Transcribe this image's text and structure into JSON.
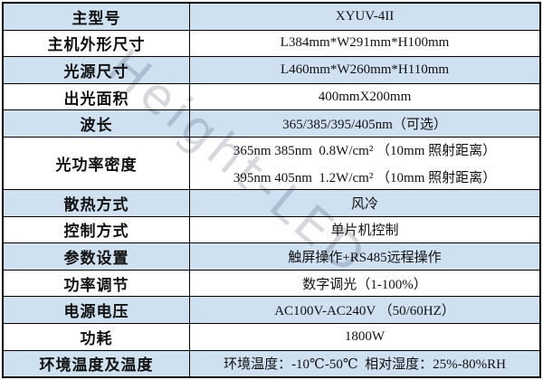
{
  "watermark": {
    "text": "Height-LED",
    "color": "#9ea3af"
  },
  "colors": {
    "row_blue": "#cfe0f1",
    "row_white": "#ffffff",
    "border": "#000000",
    "text": "#111111"
  },
  "table": {
    "rows": [
      {
        "label": "主型号",
        "value": "XYUV-4II",
        "shade": "blue"
      },
      {
        "label": "主机外形尺寸",
        "value": "L384mm*W291mm*H100mm",
        "shade": "white"
      },
      {
        "label": "光源尺寸",
        "value": "L460mm*W260mm*H110mm",
        "shade": "blue"
      },
      {
        "label": "出光面积",
        "value": "400mmX200mm",
        "shade": "white"
      },
      {
        "label": "波长",
        "value": "365/385/395/405nm（可选）",
        "shade": "blue"
      },
      {
        "label": "光功率密度",
        "shade": "white",
        "lines": [
          "365nm 385nm  0.8W/cm² （10mm 照射距离）",
          "395nm 405nm  1.2W/cm² （10mm 照射距离）"
        ]
      },
      {
        "label": "散热方式",
        "value": "风冷",
        "shade": "blue"
      },
      {
        "label": "控制方式",
        "value": "单片机控制",
        "shade": "white"
      },
      {
        "label": "参数设置",
        "value": "触屏操作+RS485远程操作",
        "shade": "blue"
      },
      {
        "label": "功率调节",
        "value": "数字调光（1-100%）",
        "shade": "white"
      },
      {
        "label": "电源电压",
        "value": "AC100V-AC240V （50/60HZ）",
        "shade": "blue"
      },
      {
        "label": "功耗",
        "value": "1800W",
        "shade": "white"
      },
      {
        "label": "环境温度及温度",
        "value": "环境温度：-10℃-50℃  相对湿度：25%-80%RH",
        "shade": "blue"
      }
    ]
  }
}
